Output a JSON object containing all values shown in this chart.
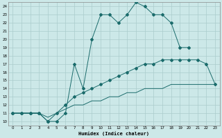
{
  "xlabel": "Humidex (Indice chaleur)",
  "bg_color": "#cce8e8",
  "grid_color": "#aacccc",
  "line_color": "#1a6b6b",
  "xlim": [
    -0.5,
    23.5
  ],
  "ylim": [
    9.5,
    24.5
  ],
  "xticks": [
    0,
    1,
    2,
    3,
    4,
    5,
    6,
    7,
    8,
    9,
    10,
    11,
    12,
    13,
    14,
    15,
    16,
    17,
    18,
    19,
    20,
    21,
    22,
    23
  ],
  "yticks": [
    10,
    11,
    12,
    13,
    14,
    15,
    16,
    17,
    18,
    19,
    20,
    21,
    22,
    23,
    24
  ],
  "line1_x": [
    0,
    1,
    2,
    3,
    4,
    5,
    6,
    7,
    8,
    9,
    10,
    11,
    12,
    13,
    14,
    15,
    16,
    17,
    18,
    19,
    20
  ],
  "line1_y": [
    11,
    11,
    11,
    11,
    10,
    10,
    11,
    17,
    14,
    20,
    23,
    23,
    22,
    23,
    24.5,
    24,
    23,
    23,
    22,
    19,
    19
  ],
  "line2_x": [
    0,
    1,
    2,
    3,
    4,
    5,
    6,
    7,
    8,
    9,
    10,
    11,
    12,
    13,
    14,
    15,
    16,
    17,
    18,
    19,
    20,
    21,
    22,
    23
  ],
  "line2_y": [
    11,
    11,
    11,
    11,
    10,
    11,
    12,
    13,
    13.5,
    14,
    14.5,
    15,
    15.5,
    16,
    16.5,
    17,
    17,
    17.5,
    17.5,
    17.5,
    17.5,
    17.5,
    17,
    14.5
  ],
  "line3_x": [
    0,
    1,
    2,
    3,
    4,
    5,
    6,
    7,
    8,
    9,
    10,
    11,
    12,
    13,
    14,
    15,
    16,
    17,
    18,
    19,
    20,
    21,
    22,
    23
  ],
  "line3_y": [
    11,
    11,
    11,
    11,
    10.5,
    11,
    11.5,
    12,
    12,
    12.5,
    12.5,
    13,
    13,
    13.5,
    13.5,
    14,
    14,
    14,
    14.5,
    14.5,
    14.5,
    14.5,
    14.5,
    14.5
  ]
}
